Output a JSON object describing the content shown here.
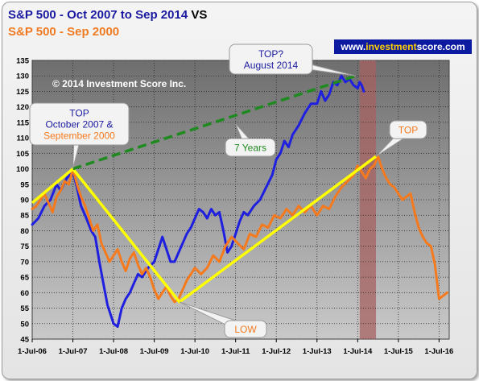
{
  "title": {
    "line1_blue": "S&P 500  - Oct 2007 to Sep 2014",
    "line1_vs": " VS",
    "line2_orange": "S&P 500  - Sep 2000"
  },
  "banner": {
    "prefix": "www.",
    "highlight": "investment",
    "suffix": "score.com"
  },
  "colors": {
    "blue_series": "#1f1fe0",
    "orange_series": "#f57a1e",
    "trend_yellow": "#ffff00",
    "trend_green": "#1f8a1f",
    "plot_bg": "#808080",
    "shade": "#a56060"
  },
  "chart_data": {
    "type": "line",
    "title": "S&P 500  - Oct 2007 to Sep 2014 VS S&P 500  - Sep 2000",
    "watermark": "© 2014 Investment Score Inc.",
    "ylim": [
      45,
      135
    ],
    "yticks": [
      45,
      50,
      55,
      60,
      65,
      70,
      75,
      80,
      85,
      90,
      95,
      100,
      105,
      110,
      115,
      120,
      125,
      130,
      135
    ],
    "xlim": [
      0,
      10.25
    ],
    "xticks": [
      "1-Jul-06",
      "1-Jul-07",
      "1-Jul-08",
      "1-Jul-09",
      "1-Jul-10",
      "1-Jul-11",
      "1-Jul-12",
      "1-Jul-13",
      "1-Jul-14",
      "1-Jul-15",
      "1-Jul-16"
    ],
    "grid": true,
    "shaded_region": [
      8.05,
      8.45
    ],
    "series": [
      {
        "name": "S&P 500 - Oct 2007 to Sep 2014",
        "color": "#1f1fe0",
        "x": [
          0.0,
          0.15,
          0.3,
          0.45,
          0.6,
          0.7,
          0.85,
          1.0,
          1.1,
          1.2,
          1.3,
          1.45,
          1.55,
          1.65,
          1.75,
          1.85,
          2.0,
          2.1,
          2.2,
          2.3,
          2.4,
          2.5,
          2.6,
          2.7,
          2.85,
          3.0,
          3.1,
          3.2,
          3.3,
          3.4,
          3.5,
          3.6,
          3.7,
          3.8,
          3.9,
          4.0,
          4.1,
          4.2,
          4.3,
          4.4,
          4.5,
          4.6,
          4.7,
          4.8,
          4.9,
          5.0,
          5.1,
          5.2,
          5.3,
          5.45,
          5.6,
          5.75,
          5.9,
          6.0,
          6.1,
          6.2,
          6.3,
          6.4,
          6.55,
          6.7,
          6.85,
          7.0,
          7.1,
          7.2,
          7.3,
          7.4,
          7.5,
          7.6,
          7.7,
          7.8,
          7.9,
          8.0,
          8.05,
          8.1,
          8.15
        ],
        "values": [
          82,
          84,
          88,
          90,
          95,
          93,
          97,
          99,
          94,
          88,
          85,
          80,
          78,
          70,
          63,
          56,
          50,
          49,
          55,
          58,
          60,
          63,
          66,
          65,
          68,
          70,
          74,
          78,
          74,
          70,
          70,
          73,
          76,
          79,
          81,
          84,
          87,
          86,
          84,
          87,
          85,
          86,
          80,
          73,
          75,
          79,
          83,
          86,
          85,
          88,
          90,
          94,
          98,
          103,
          105,
          109,
          107,
          111,
          114,
          118,
          121,
          121,
          125,
          122,
          124,
          128,
          127,
          130,
          128,
          129,
          127,
          126,
          128,
          127,
          125
        ]
      },
      {
        "name": "S&P 500 - Sep 2000",
        "color": "#f57a1e",
        "x": [
          0.0,
          0.1,
          0.2,
          0.3,
          0.4,
          0.5,
          0.6,
          0.7,
          0.8,
          0.9,
          1.0,
          1.1,
          1.2,
          1.3,
          1.4,
          1.5,
          1.6,
          1.7,
          1.8,
          1.9,
          2.0,
          2.1,
          2.2,
          2.3,
          2.4,
          2.5,
          2.6,
          2.7,
          2.8,
          2.9,
          3.0,
          3.1,
          3.2,
          3.3,
          3.4,
          3.5,
          3.6,
          3.7,
          3.8,
          3.9,
          4.0,
          4.15,
          4.3,
          4.45,
          4.6,
          4.75,
          4.9,
          5.05,
          5.2,
          5.35,
          5.5,
          5.65,
          5.8,
          5.95,
          6.1,
          6.25,
          6.4,
          6.55,
          6.7,
          6.85,
          7.0,
          7.15,
          7.3,
          7.45,
          7.6,
          7.75,
          7.9,
          8.0,
          8.1,
          8.2,
          8.3,
          8.4,
          8.5,
          8.6,
          8.7,
          8.8,
          8.9,
          9.0,
          9.1,
          9.2,
          9.3,
          9.4,
          9.5,
          9.6,
          9.7,
          9.8,
          9.9,
          10.0,
          10.1,
          10.2
        ],
        "values": [
          87,
          88,
          90,
          92,
          89,
          86,
          91,
          93,
          96,
          95,
          100,
          95,
          91,
          88,
          84,
          80,
          82,
          76,
          73,
          70,
          72,
          74,
          70,
          67,
          71,
          73,
          69,
          66,
          68,
          65,
          61,
          58,
          60,
          62,
          59,
          57,
          58,
          61,
          64,
          66,
          68,
          66,
          68,
          72,
          70,
          75,
          78,
          76,
          74,
          79,
          78,
          82,
          81,
          85,
          84,
          87,
          85,
          88,
          86,
          88,
          85,
          88,
          87,
          91,
          94,
          96,
          98,
          101,
          99,
          97,
          100,
          101,
          104,
          100,
          97,
          95,
          94,
          92,
          90,
          91,
          92,
          86,
          81,
          78,
          76,
          75,
          69,
          58,
          59,
          60
        ]
      }
    ],
    "trendlines": [
      {
        "kind": "yellow",
        "points": [
          [
            0.0,
            89
          ],
          [
            1.0,
            100
          ],
          [
            3.62,
            57
          ],
          [
            8.45,
            104
          ]
        ]
      },
      {
        "kind": "green-dashed",
        "points": [
          [
            1.0,
            100
          ],
          [
            7.95,
            130
          ]
        ]
      }
    ],
    "annotations": [
      {
        "id": "top2014",
        "lines": [
          "TOP?",
          "August 2014"
        ],
        "colors": [
          "#1a1aa0",
          "#1a1aa0"
        ]
      },
      {
        "id": "top2007",
        "lines": [
          "TOP",
          "October 2007 &",
          "September 2000"
        ],
        "colors": [
          "#1a1aa0",
          "#1a1aa0",
          "#f57a1e"
        ]
      },
      {
        "id": "years",
        "lines": [
          "7 Years"
        ],
        "colors": [
          "#1f8a1f"
        ]
      },
      {
        "id": "top",
        "lines": [
          "TOP"
        ],
        "colors": [
          "#f57a1e"
        ]
      },
      {
        "id": "low",
        "lines": [
          "LOW"
        ],
        "colors": [
          "#f57a1e"
        ]
      }
    ]
  }
}
